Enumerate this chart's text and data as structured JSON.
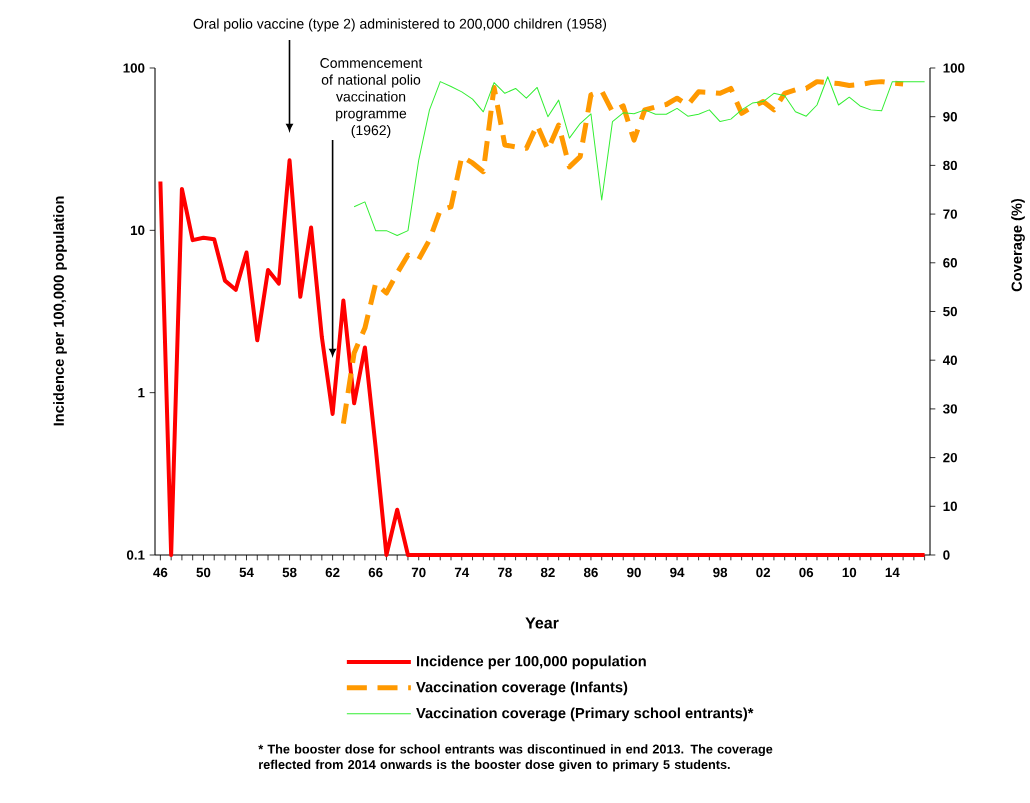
{
  "chart_data": {
    "type": "line",
    "xlabel": "Year",
    "ylabel": "Incidence per 100,000 population",
    "y2label": "Coverage (%)",
    "categories": [
      "46",
      null,
      null,
      null,
      "50",
      null,
      null,
      null,
      "54",
      null,
      null,
      null,
      "58",
      null,
      null,
      null,
      "62",
      null,
      null,
      null,
      "66",
      null,
      null,
      null,
      "70",
      null,
      null,
      null,
      "74",
      null,
      null,
      null,
      "78",
      null,
      null,
      null,
      "82",
      null,
      null,
      null,
      "86",
      null,
      null,
      null,
      "90",
      null,
      null,
      null,
      "94",
      null,
      null,
      null,
      "98",
      null,
      null,
      null,
      "02",
      null,
      null,
      null,
      "06",
      null,
      null,
      null,
      "10",
      null,
      null,
      null,
      "14",
      null,
      null,
      null
    ],
    "series": [
      {
        "name": "Incidence per 100,000 population",
        "color": "#ff0000",
        "line_style": "solid",
        "values": [
          20,
          0.1,
          18,
          8.7,
          9,
          8.8,
          4.9,
          4.3,
          7.3,
          2.1,
          5.7,
          4.7,
          27,
          3.9,
          10.4,
          2.2,
          0.74,
          3.7,
          0.86,
          1.9,
          0.46,
          0.1,
          0.19,
          0.1,
          0.1,
          0.1,
          0.1,
          0.1,
          0.1,
          0.1,
          0.1,
          0.1,
          0.1,
          0.1,
          0.1,
          0.1,
          0.1,
          0.1,
          0.1,
          0.1,
          0.1,
          0.1,
          0.1,
          0.1,
          0.1,
          0.1,
          0.1,
          0.1,
          0.1,
          0.1,
          0.1,
          0.1,
          0.1,
          0.1,
          0.1,
          0.1,
          0.1,
          0.1,
          0.1,
          0.1,
          0.1,
          0.1,
          0.1,
          0.1,
          0.1,
          0.1,
          0.1,
          0.1,
          0.1,
          0.1,
          0.1,
          0.1
        ]
      },
      {
        "name": "Vaccination coverage (Infants)",
        "color": "#ff9900",
        "line_style": "dashed",
        "axis": "y2",
        "values": [
          null,
          null,
          null,
          null,
          null,
          null,
          null,
          null,
          null,
          null,
          null,
          null,
          null,
          null,
          null,
          null,
          null,
          27,
          41.5,
          46.6,
          55.8,
          53.8,
          57.9,
          61.6,
          60.7,
          64.7,
          70.8,
          71.5,
          81.8,
          80.5,
          78.7,
          96,
          84.2,
          83.8,
          83.5,
          88.3,
          83.2,
          88.3,
          79.7,
          81.8,
          94.5,
          95.3,
          91,
          92.2,
          85.2,
          91.4,
          92,
          92.5,
          93.8,
          92.4,
          95.1,
          95,
          94.8,
          95.8,
          90.7,
          92,
          93.1,
          91.4,
          94.8,
          95.5,
          95.8,
          97.2,
          97,
          96.8,
          96.4,
          96.6,
          97,
          97.2,
          96.9,
          96.7,
          null,
          null
        ]
      },
      {
        "name": "Vaccination coverage (Primary school entrants)*",
        "color": "#33ee33",
        "line_style": "solid",
        "axis": "y2",
        "values": [
          null,
          null,
          null,
          null,
          null,
          null,
          null,
          null,
          null,
          null,
          null,
          null,
          null,
          null,
          null,
          null,
          null,
          null,
          71.5,
          72.5,
          66.6,
          66.6,
          65.6,
          66.6,
          81.1,
          91.4,
          97.2,
          96.2,
          95.1,
          93.6,
          91,
          97,
          94.8,
          95.8,
          93.8,
          96,
          90,
          93.4,
          85.6,
          88.6,
          90.6,
          72.9,
          89,
          90.8,
          90.6,
          91.4,
          90.5,
          90.5,
          91.7,
          90.1,
          90.5,
          91.4,
          89,
          89.5,
          91.4,
          92.8,
          93.1,
          94.8,
          94.3,
          91,
          90.1,
          92.4,
          98.2,
          92.4,
          94,
          92.2,
          91.4,
          91.2,
          97.2,
          97.2,
          97.2,
          97.2
        ]
      }
    ],
    "log": "y",
    "ylim": [
      0.1,
      100
    ],
    "yticks": [
      0.1,
      1,
      10,
      100
    ],
    "y2lim": [
      0,
      100
    ],
    "y2ticks": [
      0,
      10,
      20,
      30,
      40,
      50,
      60,
      70,
      80,
      90,
      100
    ],
    "legend": "bottom",
    "annotations": [
      "Oral polio vaccine (type 2) administered to 200,000 children (1958)",
      "Commencement of national polio vaccination programme (1962)",
      "* The booster dose for school entrants was discontinued in end 2013. The coverage reflected from 2014 onwards is the booster dose given to primary 5 students."
    ]
  }
}
